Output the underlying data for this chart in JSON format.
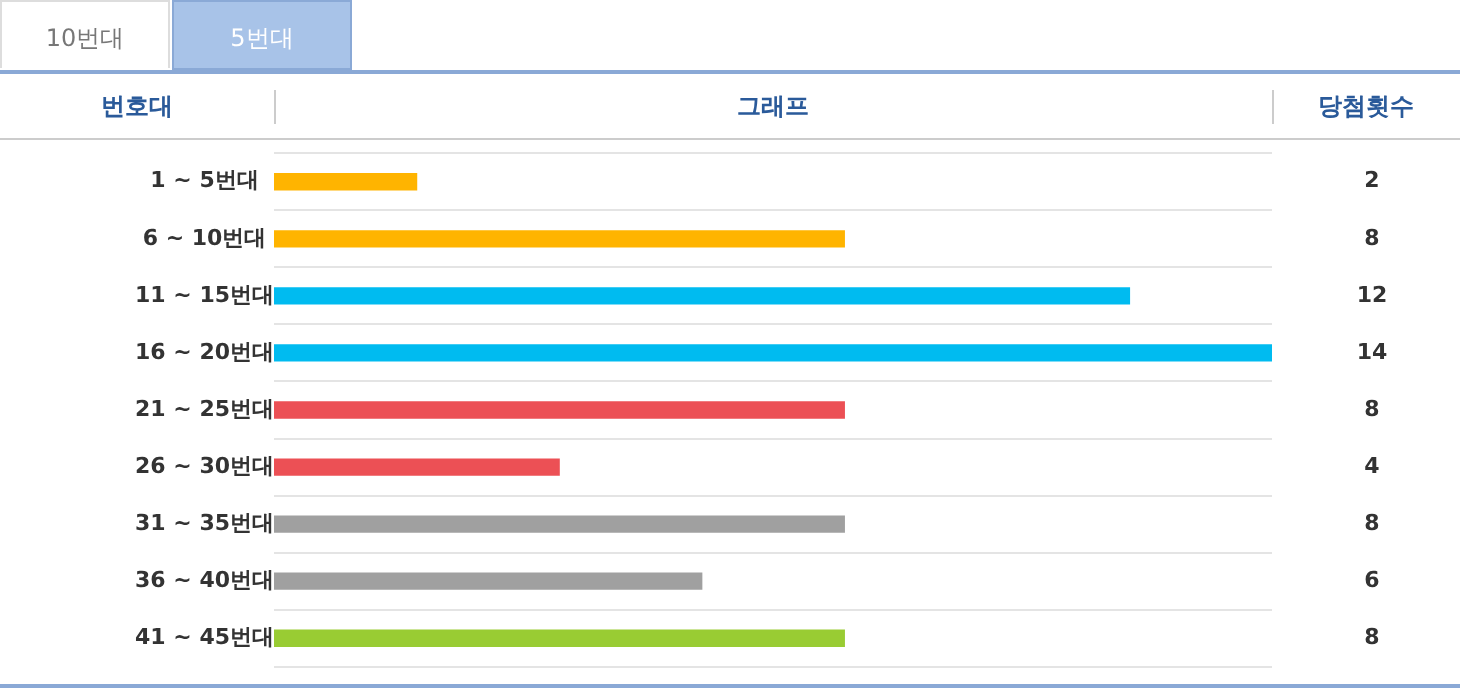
{
  "chart_data": {
    "type": "bar",
    "orientation": "horizontal",
    "ylabel": "번호대",
    "xlabel": "그래프",
    "annotations": [
      "10번대",
      "5번대",
      "당첨횟수"
    ],
    "categories": [
      "1 ~ 5번대",
      "6 ~ 10번대",
      "11 ~ 15번대",
      "16 ~ 20번대",
      "21 ~ 25번대",
      "26 ~ 30번대",
      "31 ~ 35번대",
      "36 ~ 40번대",
      "41 ~ 45번대"
    ],
    "values": [
      2,
      8,
      12,
      14,
      8,
      4,
      8,
      6,
      8
    ],
    "colors": [
      "#ffb400",
      "#ffb400",
      "#00bbf0",
      "#00bbf0",
      "#ec5055",
      "#ec5055",
      "#a0a0a0",
      "#a0a0a0",
      "#99cc33"
    ],
    "xlim": [
      0,
      14
    ],
    "data_labels": true,
    "grid": "y"
  }
}
